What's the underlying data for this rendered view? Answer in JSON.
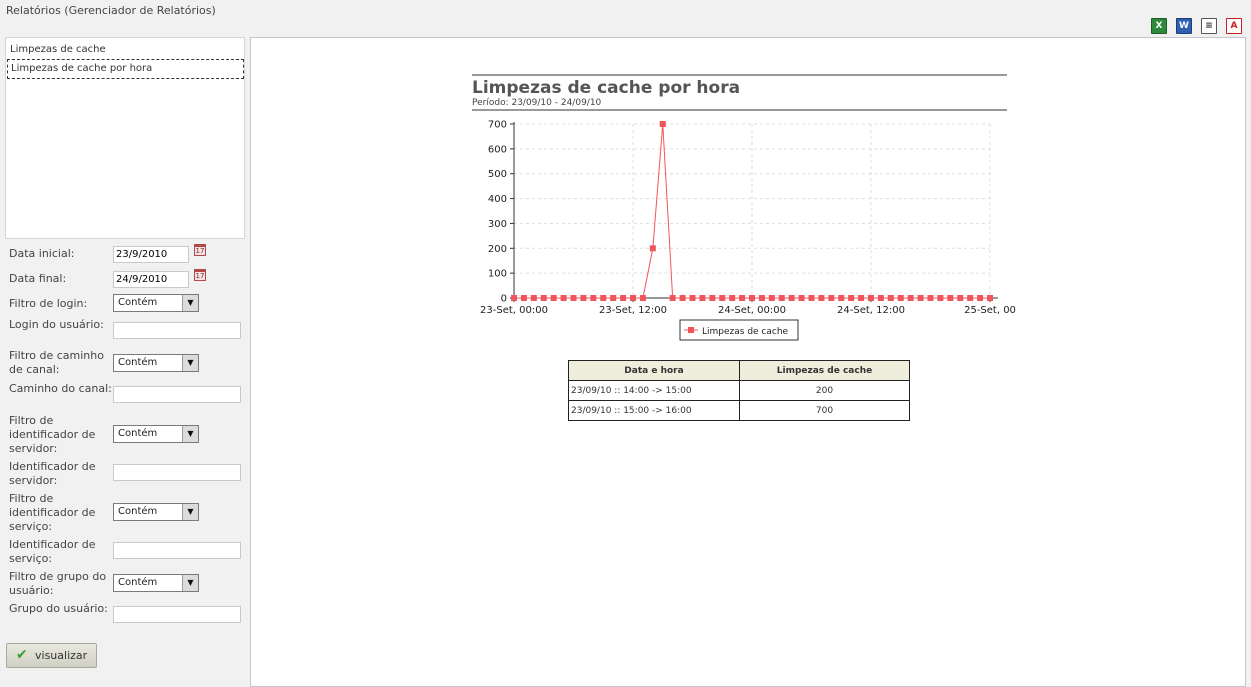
{
  "page": {
    "title": "Relatórios (Gerenciador de Relatórios)"
  },
  "export": {
    "excel_icon": "excel-export-icon",
    "word_icon": "word-export-icon",
    "text_icon": "text-export-icon",
    "pdf_icon": "pdf-export-icon",
    "excel_label": "X",
    "word_label": "W",
    "text_label": "≡",
    "pdf_label": "A"
  },
  "reports": [
    {
      "label": "Limpezas de cache"
    },
    {
      "label": "Limpezas de cache por hora"
    }
  ],
  "form": {
    "data_inicial": {
      "label": "Data inicial:",
      "value": "23/9/2010"
    },
    "data_final": {
      "label": "Data final:",
      "value": "24/9/2010"
    },
    "filtro_login": {
      "label": "Filtro de login:",
      "value": "Contém"
    },
    "login_usuario": {
      "label": "Login do usuário:",
      "value": ""
    },
    "filtro_caminho_canal": {
      "label": "Filtro de caminho de canal:",
      "value": "Contém"
    },
    "caminho_canal": {
      "label": "Caminho do canal:",
      "value": ""
    },
    "filtro_id_servidor": {
      "label": "Filtro de identificador de servidor:",
      "value": "Contém"
    },
    "id_servidor": {
      "label": "Identificador de servidor:",
      "value": ""
    },
    "filtro_id_servico": {
      "label": "Filtro de identificador de serviço:",
      "value": "Contém"
    },
    "id_servico": {
      "label": "Identificador de serviço:",
      "value": ""
    },
    "filtro_grupo_usuario": {
      "label": "Filtro de grupo do usuário:",
      "value": "Contém"
    },
    "grupo_usuario": {
      "label": "Grupo do usuário:",
      "value": ""
    },
    "submit_label": "visualizar",
    "calendar_glyph": "17",
    "select_arrow": "▼",
    "check_glyph": "✔"
  },
  "report": {
    "title": "Limpezas de cache por hora",
    "subtitle": "Período: 23/09/10 - 24/09/10"
  },
  "chart_data": {
    "type": "line",
    "title": "Limpezas de cache por hora",
    "xlabel": "",
    "ylabel": "",
    "x_ticks": [
      "23-Set, 00:00",
      "23-Set, 12:00",
      "24-Set, 00:00",
      "24-Set, 12:00",
      "25-Set, 00"
    ],
    "y_ticks": [
      0,
      100,
      200,
      300,
      400,
      500,
      600,
      700
    ],
    "ylim": [
      0,
      700
    ],
    "xlim_hours": [
      0,
      48
    ],
    "grid": true,
    "legend_placement": "bottom-center",
    "series": [
      {
        "name": "Limpezas de cache",
        "color": "#f0555b",
        "x_hours": [
          0,
          1,
          2,
          3,
          4,
          5,
          6,
          7,
          8,
          9,
          10,
          11,
          12,
          13,
          14,
          15,
          16,
          17,
          18,
          19,
          20,
          21,
          22,
          23,
          24,
          25,
          26,
          27,
          28,
          29,
          30,
          31,
          32,
          33,
          34,
          35,
          36,
          37,
          38,
          39,
          40,
          41,
          42,
          43,
          44,
          45,
          46,
          47,
          48
        ],
        "values": [
          0,
          0,
          0,
          0,
          0,
          0,
          0,
          0,
          0,
          0,
          0,
          0,
          0,
          0,
          200,
          700,
          0,
          0,
          0,
          0,
          0,
          0,
          0,
          0,
          0,
          0,
          0,
          0,
          0,
          0,
          0,
          0,
          0,
          0,
          0,
          0,
          0,
          0,
          0,
          0,
          0,
          0,
          0,
          0,
          0,
          0,
          0,
          0,
          0
        ]
      }
    ]
  },
  "table": {
    "headers": [
      "Data e hora",
      "Limpezas de cache"
    ],
    "rows": [
      [
        "23/09/10 :: 14:00 -> 15:00",
        "200"
      ],
      [
        "23/09/10 :: 15:00 -> 16:00",
        "700"
      ]
    ]
  }
}
